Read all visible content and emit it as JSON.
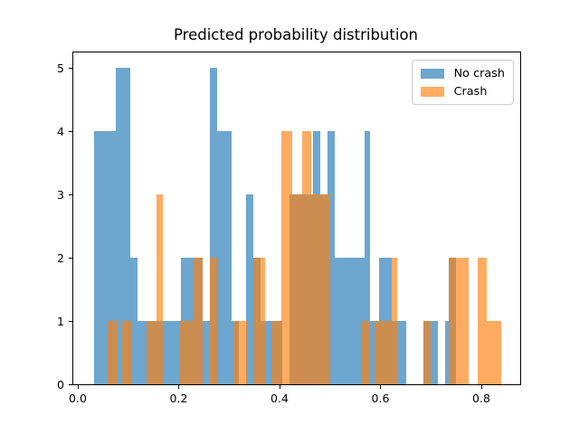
{
  "figure": {
    "title": "Predicted probability distribution"
  },
  "legend": {
    "items": [
      {
        "label": "No crash",
        "color": "#1f77b4"
      },
      {
        "label": "Crash",
        "color": "#ff7f0e"
      }
    ],
    "position": "upper right"
  },
  "chart_data": {
    "type": "histogram",
    "title": "Predicted probability distribution",
    "xlabel": "",
    "ylabel": "",
    "xlim": [
      -0.009,
      0.877
    ],
    "ylim": [
      0,
      5.25
    ],
    "x_ticks": [
      0.0,
      0.2,
      0.4,
      0.6,
      0.8
    ],
    "x_tick_labels": [
      "0.0",
      "0.2",
      "0.4",
      "0.6",
      "0.8"
    ],
    "y_ticks": [
      0,
      1,
      2,
      3,
      4,
      5
    ],
    "y_tick_labels": [
      "0",
      "1",
      "2",
      "3",
      "4",
      "5"
    ],
    "grid": false,
    "bar_alpha": 0.65,
    "legend_position": "upper right",
    "series": [
      {
        "name": "No crash",
        "color": "#1f77b4",
        "bars": [
          [
            0.0317,
            0.0748,
            4
          ],
          [
            0.0748,
            0.1035,
            5
          ],
          [
            0.1035,
            0.1178,
            2
          ],
          [
            0.1178,
            0.2039,
            1
          ],
          [
            0.2039,
            0.247,
            2
          ],
          [
            0.247,
            0.2614,
            1
          ],
          [
            0.2614,
            0.2757,
            5
          ],
          [
            0.2757,
            0.3044,
            4
          ],
          [
            0.3044,
            0.3187,
            1
          ],
          [
            0.3331,
            0.3475,
            3
          ],
          [
            0.3475,
            0.3618,
            2
          ],
          [
            0.3618,
            0.4048,
            1
          ],
          [
            0.419,
            0.4663,
            3
          ],
          [
            0.4663,
            0.4812,
            4
          ],
          [
            0.4812,
            0.4945,
            3
          ],
          [
            0.4945,
            0.5101,
            4
          ],
          [
            0.5101,
            0.5681,
            2
          ],
          [
            0.5681,
            0.58,
            4
          ],
          [
            0.58,
            0.5968,
            1
          ],
          [
            0.5968,
            0.622,
            2
          ],
          [
            0.622,
            0.6506,
            1
          ],
          [
            0.6853,
            0.7144,
            1
          ],
          [
            0.7283,
            0.7354,
            1
          ],
          [
            0.7354,
            0.7503,
            2
          ]
        ]
      },
      {
        "name": "Crash",
        "color": "#ff7f0e",
        "bars": [
          [
            0.0592,
            0.078,
            1
          ],
          [
            0.0884,
            0.108,
            1
          ],
          [
            0.1363,
            0.1555,
            1
          ],
          [
            0.1555,
            0.1692,
            3
          ],
          [
            0.2015,
            0.2301,
            1
          ],
          [
            0.2301,
            0.248,
            2
          ],
          [
            0.2614,
            0.278,
            2
          ],
          [
            0.308,
            0.3349,
            1
          ],
          [
            0.3475,
            0.3707,
            2
          ],
          [
            0.3844,
            0.4036,
            1
          ],
          [
            0.4036,
            0.4246,
            4
          ],
          [
            0.4246,
            0.4443,
            3
          ],
          [
            0.4443,
            0.4633,
            4
          ],
          [
            0.4633,
            0.501,
            3
          ],
          [
            0.562,
            0.579,
            1
          ],
          [
            0.589,
            0.622,
            1
          ],
          [
            0.622,
            0.634,
            2
          ],
          [
            0.6853,
            0.6987,
            1
          ],
          [
            0.7354,
            0.7743,
            2
          ],
          [
            0.7935,
            0.8102,
            2
          ],
          [
            0.8102,
            0.84,
            1
          ]
        ]
      }
    ]
  }
}
